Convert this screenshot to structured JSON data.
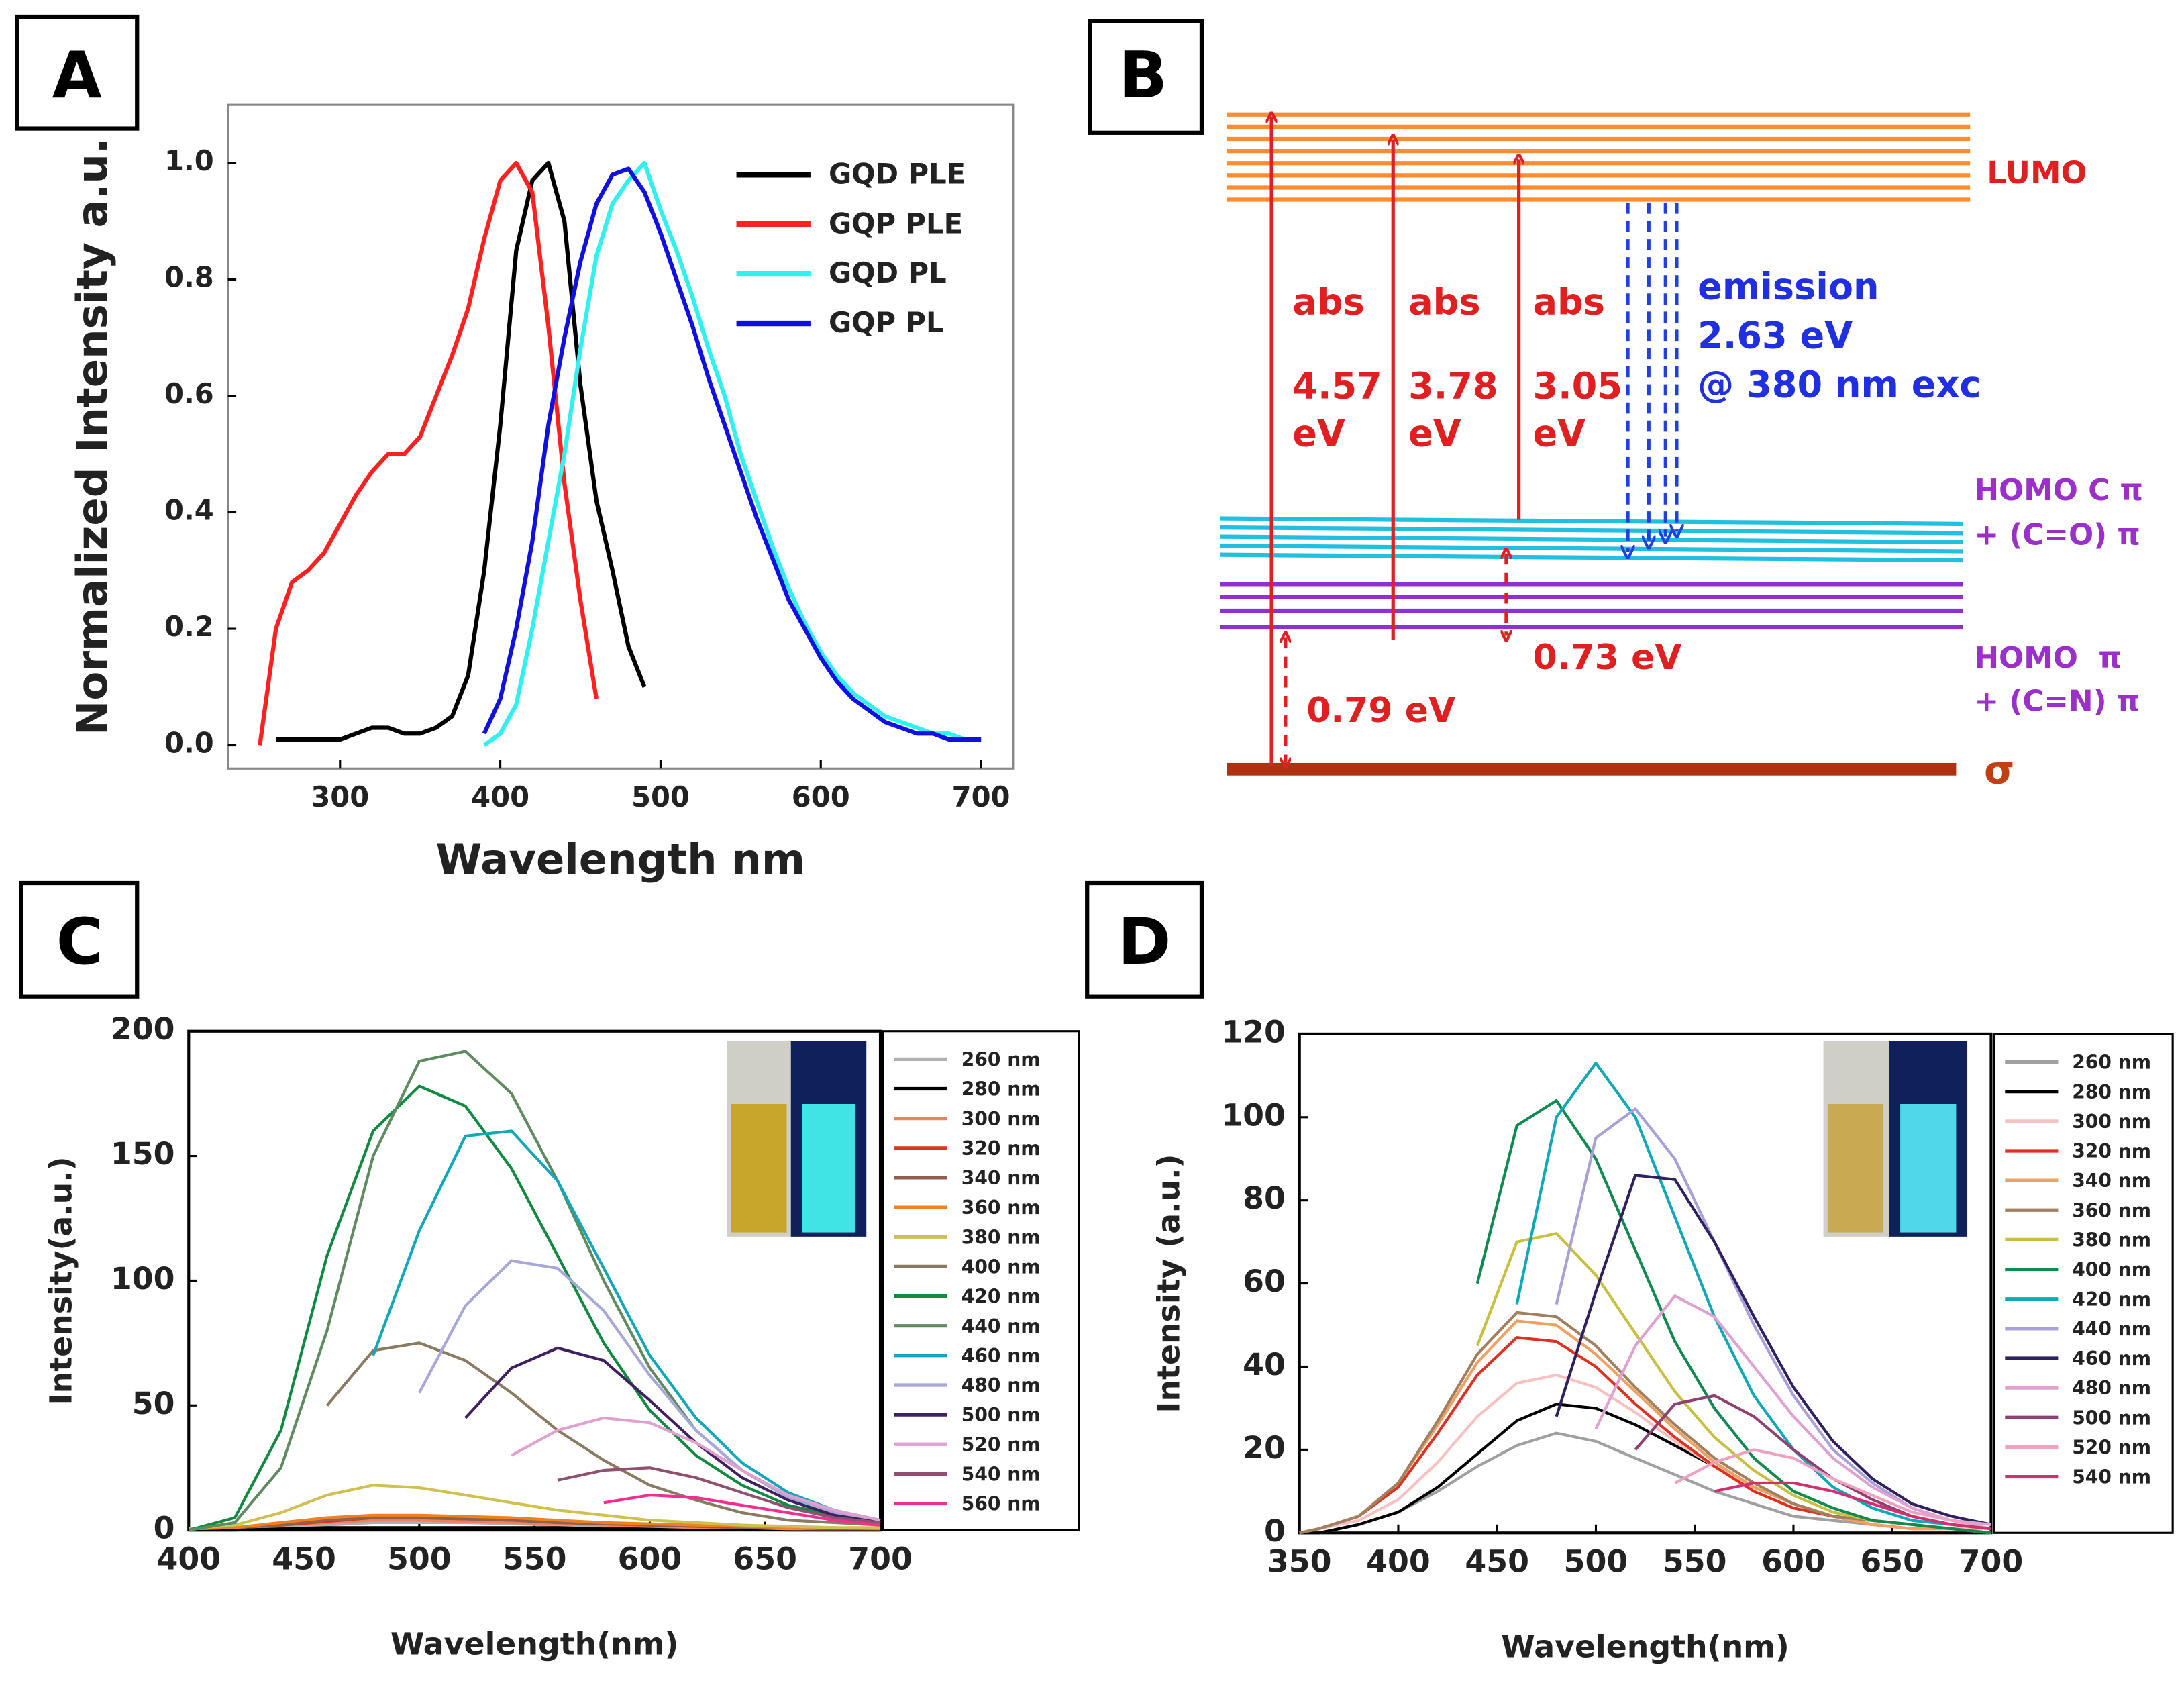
{
  "chart_data": [
    {
      "panel": "A",
      "type": "line",
      "x_label": "Wavelength nm",
      "y_label": "Normalized Intensity a.u.",
      "x": [
        250,
        260,
        270,
        280,
        290,
        300,
        310,
        320,
        330,
        340,
        350,
        360,
        370,
        380,
        390,
        400,
        410,
        420,
        430,
        440,
        450,
        460,
        470,
        480,
        490,
        500,
        510,
        520,
        530,
        540,
        550,
        560,
        570,
        580,
        590,
        600,
        610,
        620,
        630,
        640,
        650,
        660,
        670,
        680,
        690,
        700
      ],
      "series": [
        {
          "name": "GQD PLE",
          "color": "#000000",
          "values": [
            null,
            0.01,
            0.01,
            0.01,
            0.01,
            0.01,
            0.02,
            0.03,
            0.03,
            0.02,
            0.02,
            0.03,
            0.05,
            0.12,
            0.3,
            0.55,
            0.85,
            0.97,
            1.0,
            0.9,
            0.62,
            0.42,
            0.3,
            0.17,
            0.1,
            null,
            null,
            null,
            null,
            null,
            null,
            null,
            null,
            null,
            null,
            null,
            null,
            null,
            null,
            null,
            null,
            null,
            null,
            null,
            null,
            null
          ]
        },
        {
          "name": "GQP PLE",
          "color": "#ff2020",
          "values": [
            0,
            0.2,
            0.28,
            0.3,
            0.33,
            0.38,
            0.43,
            0.47,
            0.5,
            0.5,
            0.53,
            0.6,
            0.67,
            0.75,
            0.87,
            0.97,
            1.0,
            0.95,
            0.72,
            0.45,
            0.25,
            0.08,
            null,
            null,
            null,
            null,
            null,
            null,
            null,
            null,
            null,
            null,
            null,
            null,
            null,
            null,
            null,
            null,
            null,
            null,
            null,
            null,
            null,
            null,
            null,
            null
          ]
        },
        {
          "name": "GQD PL",
          "color": "#30f0f0",
          "values": [
            null,
            null,
            null,
            null,
            null,
            null,
            null,
            null,
            null,
            null,
            null,
            null,
            null,
            null,
            0.0,
            0.02,
            0.07,
            0.2,
            0.35,
            0.5,
            0.68,
            0.84,
            0.93,
            0.97,
            1.0,
            0.92,
            0.85,
            0.77,
            0.68,
            0.6,
            0.5,
            0.42,
            0.34,
            0.27,
            0.21,
            0.16,
            0.12,
            0.09,
            0.07,
            0.05,
            0.04,
            0.03,
            0.02,
            0.02,
            0.01,
            0.01
          ]
        },
        {
          "name": "GQP PL",
          "color": "#1010e0",
          "values": [
            null,
            null,
            null,
            null,
            null,
            null,
            null,
            null,
            null,
            null,
            null,
            null,
            null,
            null,
            0.02,
            0.08,
            0.2,
            0.35,
            0.55,
            0.7,
            0.83,
            0.93,
            0.98,
            0.99,
            0.95,
            0.88,
            0.8,
            0.72,
            0.63,
            0.55,
            0.47,
            0.39,
            0.32,
            0.25,
            0.2,
            0.15,
            0.11,
            0.08,
            0.06,
            0.04,
            0.03,
            0.02,
            0.02,
            0.01,
            0.01,
            0.01
          ]
        }
      ],
      "xlim": [
        230,
        720
      ],
      "ylim": [
        -0.04,
        1.1
      ],
      "xticks": [
        300,
        400,
        500,
        600,
        700
      ],
      "yticks": [
        {
          "value": 0,
          "label": "0.0"
        },
        0.2,
        0.4,
        0.6,
        0.8,
        {
          "value": 1,
          "label": "1.0"
        }
      ],
      "legend": "upper right",
      "grid": false
    },
    {
      "panel": "C",
      "type": "line",
      "x_label": "Wavelength(nm)",
      "y_label": "Intensity(a.u.)",
      "x": [
        400,
        420,
        440,
        460,
        480,
        500,
        520,
        540,
        560,
        580,
        600,
        620,
        640,
        660,
        680,
        700
      ],
      "series": [
        {
          "name": "260 nm",
          "color": "#b0b0b0",
          "values": [
            0.5,
            0.5,
            1,
            2,
            3,
            3,
            3,
            2.5,
            2,
            1.5,
            1,
            1,
            0.5,
            0.5,
            0.5,
            0.5
          ]
        },
        {
          "name": "280 nm",
          "color": "#000000",
          "values": [
            0,
            0,
            0.5,
            1,
            1,
            1,
            1,
            1,
            1,
            0.5,
            0.5,
            0.5,
            0.5,
            0,
            0,
            0
          ]
        },
        {
          "name": "300 nm",
          "color": "#f08060",
          "values": [
            0.5,
            1,
            2,
            3,
            4,
            4,
            3.5,
            3,
            2.5,
            2,
            1.5,
            1,
            1,
            0.5,
            0.5,
            0.5
          ]
        },
        {
          "name": "320 nm",
          "color": "#e03020",
          "values": [
            0.5,
            1,
            2,
            3.5,
            5,
            5,
            4.5,
            4,
            3,
            2.5,
            2,
            1.5,
            1,
            1,
            0.5,
            0.5
          ]
        },
        {
          "name": "340 nm",
          "color": "#906050",
          "values": [
            0.5,
            1,
            2,
            4,
            5,
            5,
            4.5,
            4,
            3,
            2.5,
            2,
            1.5,
            1,
            1,
            0.5,
            0.5
          ]
        },
        {
          "name": "360 nm",
          "color": "#f08020",
          "values": [
            0.5,
            1,
            3,
            5,
            6,
            6,
            5.5,
            5,
            4,
            3,
            2.5,
            2,
            1.5,
            1,
            1,
            0.5
          ]
        },
        {
          "name": "380 nm",
          "color": "#d0c050",
          "values": [
            0.5,
            2,
            7,
            14,
            18,
            17,
            14,
            11,
            8,
            6,
            4,
            3,
            2,
            1.5,
            1,
            1
          ]
        },
        {
          "name": "400 nm",
          "color": "#8a7a60",
          "values": [
            null,
            null,
            null,
            50,
            72,
            75,
            68,
            55,
            40,
            28,
            18,
            12,
            7,
            4,
            3,
            2
          ]
        },
        {
          "name": "420 nm",
          "color": "#108a40",
          "values": [
            0,
            5,
            40,
            110,
            160,
            178,
            170,
            145,
            110,
            75,
            48,
            30,
            18,
            10,
            6,
            3
          ]
        },
        {
          "name": "440 nm",
          "color": "#608a60",
          "values": [
            0,
            3,
            25,
            80,
            150,
            188,
            192,
            175,
            140,
            100,
            65,
            40,
            24,
            13,
            7,
            4
          ]
        },
        {
          "name": "460 nm",
          "color": "#10a8b8",
          "values": [
            null,
            null,
            null,
            null,
            70,
            120,
            158,
            160,
            140,
            105,
            70,
            45,
            27,
            15,
            8,
            4
          ]
        },
        {
          "name": "480 nm",
          "color": "#a8a8d8",
          "values": [
            null,
            null,
            null,
            null,
            null,
            55,
            90,
            108,
            105,
            88,
            62,
            40,
            24,
            13,
            7,
            3
          ]
        },
        {
          "name": "500 nm",
          "color": "#402060",
          "values": [
            null,
            null,
            null,
            null,
            null,
            null,
            45,
            65,
            73,
            68,
            52,
            35,
            21,
            12,
            6,
            3
          ]
        },
        {
          "name": "520 nm",
          "color": "#e0a0d0",
          "values": [
            null,
            null,
            null,
            null,
            null,
            null,
            null,
            30,
            40,
            45,
            43,
            35,
            24,
            14,
            8,
            4
          ]
        },
        {
          "name": "540 nm",
          "color": "#905070",
          "values": [
            null,
            null,
            null,
            null,
            null,
            null,
            null,
            null,
            20,
            24,
            25,
            21,
            15,
            9,
            5,
            3
          ]
        },
        {
          "name": "560 nm",
          "color": "#f03090",
          "values": [
            null,
            null,
            null,
            null,
            null,
            null,
            null,
            null,
            null,
            11,
            14,
            13,
            10,
            7,
            4,
            2
          ]
        }
      ],
      "xlim": [
        400,
        700
      ],
      "ylim": [
        0,
        200
      ],
      "xticks": [
        400,
        450,
        500,
        550,
        600,
        650,
        700
      ],
      "yticks": [
        0,
        50,
        100,
        150,
        200
      ],
      "legend": "outside right",
      "grid": false
    },
    {
      "panel": "D",
      "type": "line",
      "x_label": "Wavelength(nm)",
      "y_label": "Intensity (a.u.)",
      "x": [
        350,
        360,
        380,
        400,
        420,
        440,
        460,
        480,
        500,
        520,
        540,
        560,
        580,
        600,
        620,
        640,
        660,
        680,
        700
      ],
      "series": [
        {
          "name": "260 nm",
          "color": "#a0a0a0",
          "values": [
            0,
            0,
            2,
            5,
            10,
            16,
            21,
            24,
            22,
            18,
            14,
            10,
            7,
            4,
            3,
            2,
            1,
            1,
            0
          ]
        },
        {
          "name": "280 nm",
          "color": "#000000",
          "values": [
            0,
            0,
            2,
            5,
            11,
            19,
            27,
            31,
            30,
            26,
            21,
            16,
            11,
            7,
            4,
            3,
            2,
            1,
            0
          ]
        },
        {
          "name": "300 nm",
          "color": "#f8c0c0",
          "values": [
            0,
            1,
            3,
            8,
            17,
            28,
            36,
            38,
            35,
            29,
            22,
            16,
            11,
            7,
            4,
            3,
            2,
            1,
            1
          ]
        },
        {
          "name": "320 nm",
          "color": "#e03020",
          "values": [
            0,
            1,
            4,
            11,
            24,
            38,
            47,
            46,
            40,
            31,
            23,
            16,
            10,
            6,
            4,
            2,
            1,
            1,
            0
          ]
        },
        {
          "name": "340 nm",
          "color": "#f0a060",
          "values": [
            0,
            1,
            4,
            12,
            26,
            41,
            51,
            50,
            43,
            34,
            25,
            17,
            11,
            7,
            4,
            2,
            1,
            1,
            0
          ]
        },
        {
          "name": "360 nm",
          "color": "#a08060",
          "values": [
            0,
            1,
            4,
            12,
            27,
            43,
            53,
            52,
            45,
            35,
            26,
            18,
            12,
            7,
            4,
            3,
            2,
            1,
            0
          ]
        },
        {
          "name": "380 nm",
          "color": "#c8c040",
          "values": [
            null,
            null,
            null,
            null,
            null,
            45,
            70,
            72,
            62,
            48,
            34,
            23,
            15,
            9,
            5,
            3,
            2,
            1,
            0
          ]
        },
        {
          "name": "400 nm",
          "color": "#108a50",
          "values": [
            null,
            null,
            null,
            null,
            null,
            60,
            98,
            104,
            90,
            68,
            46,
            30,
            18,
            10,
            6,
            3,
            2,
            1,
            0
          ]
        },
        {
          "name": "420 nm",
          "color": "#10a8b8",
          "values": [
            null,
            null,
            null,
            null,
            null,
            null,
            55,
            100,
            113,
            100,
            76,
            52,
            33,
            20,
            11,
            6,
            3,
            2,
            1
          ]
        },
        {
          "name": "440 nm",
          "color": "#a8a0d8",
          "values": [
            null,
            null,
            null,
            null,
            null,
            null,
            null,
            55,
            95,
            102,
            90,
            70,
            50,
            33,
            20,
            12,
            6,
            3,
            2
          ]
        },
        {
          "name": "460 nm",
          "color": "#302060",
          "values": [
            null,
            null,
            null,
            null,
            null,
            null,
            null,
            28,
            58,
            86,
            85,
            70,
            52,
            35,
            22,
            13,
            7,
            4,
            2
          ]
        },
        {
          "name": "480 nm",
          "color": "#e0a0d0",
          "values": [
            null,
            null,
            null,
            null,
            null,
            null,
            null,
            null,
            25,
            45,
            57,
            52,
            40,
            28,
            18,
            11,
            6,
            3,
            2
          ]
        },
        {
          "name": "500 nm",
          "color": "#904070",
          "values": [
            null,
            null,
            null,
            null,
            null,
            null,
            null,
            null,
            null,
            20,
            31,
            33,
            28,
            20,
            13,
            8,
            4,
            2,
            1
          ]
        },
        {
          "name": "520 nm",
          "color": "#f0a0c0",
          "values": [
            null,
            null,
            null,
            null,
            null,
            null,
            null,
            null,
            null,
            null,
            12,
            17,
            20,
            18,
            13,
            9,
            5,
            3,
            1
          ]
        },
        {
          "name": "540 nm",
          "color": "#d03070",
          "values": [
            null,
            null,
            null,
            null,
            null,
            null,
            null,
            null,
            null,
            null,
            null,
            10,
            12,
            12,
            10,
            7,
            4,
            2,
            1
          ]
        }
      ],
      "xlim": [
        350,
        700
      ],
      "ylim": [
        0,
        120
      ],
      "xticks": [
        350,
        400,
        450,
        500,
        550,
        600,
        650,
        700
      ],
      "yticks": [
        0,
        20,
        40,
        60,
        80,
        100,
        120
      ],
      "legend": "outside right",
      "grid": false
    }
  ],
  "diagram": {
    "panel": "B",
    "lumo": "LUMO",
    "transitions": [
      {
        "label": "abs",
        "energy": "4.57",
        "unit": "eV"
      },
      {
        "label": "abs",
        "energy": "3.78",
        "unit": "eV"
      },
      {
        "label": "abs",
        "energy": "3.05",
        "unit": "eV"
      }
    ],
    "emission": {
      "label": "emission",
      "energy": "2.63 eV",
      "excitation": "@ 380 nm exc"
    },
    "homo_co": [
      "HOMO C π",
      "+ (C=O) π"
    ],
    "homo_cn": [
      "HOMO  π",
      "+ (C=N) π"
    ],
    "gap_co": "0.73 eV",
    "gap_sigma": "0.79 eV",
    "sigma": "σ"
  }
}
